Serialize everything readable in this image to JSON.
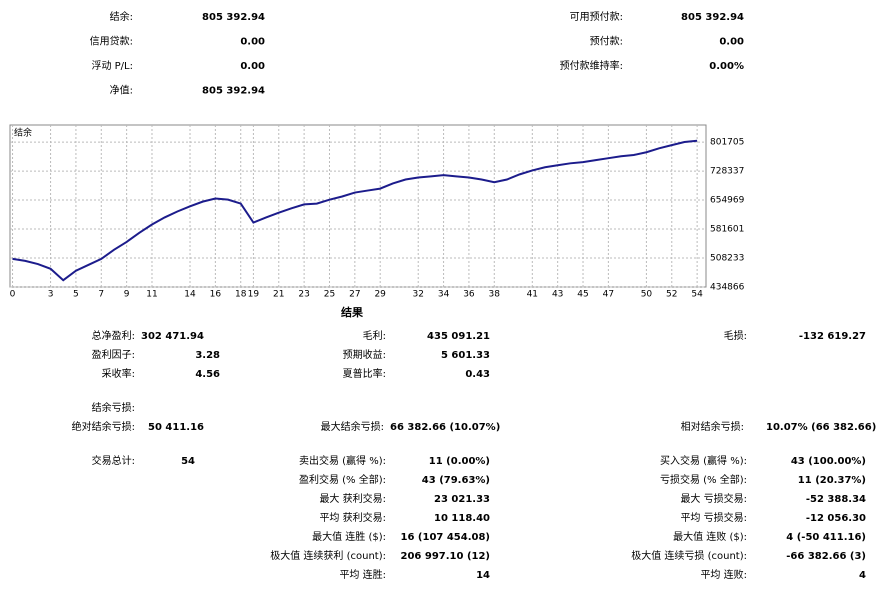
{
  "summary": {
    "left": [
      {
        "label": "结余:",
        "value": "805 392.94"
      },
      {
        "label": "信用贷款:",
        "value": "0.00"
      },
      {
        "label": "浮动 P/L:",
        "value": "0.00"
      },
      {
        "label": "净值:",
        "value": "805 392.94"
      }
    ],
    "right": [
      {
        "label": "可用预付款:",
        "value": "805 392.94"
      },
      {
        "label": "预付款:",
        "value": "0.00"
      },
      {
        "label": "预付款维持率:",
        "value": "0.00%"
      }
    ]
  },
  "chart_data": {
    "type": "line",
    "label": "结余",
    "color": "#1c1c8c",
    "grid": true,
    "x": [
      0,
      1,
      2,
      3,
      4,
      5,
      6,
      7,
      8,
      9,
      10,
      11,
      12,
      13,
      14,
      15,
      16,
      17,
      18,
      19,
      20,
      21,
      22,
      23,
      24,
      25,
      26,
      27,
      28,
      29,
      30,
      31,
      32,
      33,
      34,
      35,
      36,
      37,
      38,
      39,
      40,
      41,
      42,
      43,
      44,
      45,
      46,
      47,
      48,
      49,
      50,
      51,
      52,
      53,
      54
    ],
    "values": [
      506000,
      501000,
      493000,
      481000,
      452000,
      476000,
      491000,
      506000,
      529000,
      549000,
      572000,
      593000,
      611000,
      626000,
      639000,
      651000,
      659000,
      656000,
      646000,
      598000,
      611000,
      623000,
      634000,
      644000,
      646000,
      656000,
      664000,
      674000,
      679000,
      684000,
      697000,
      707000,
      712000,
      715000,
      718000,
      715000,
      712000,
      707000,
      700000,
      707000,
      720000,
      730000,
      738000,
      743000,
      748000,
      751000,
      756000,
      761000,
      766000,
      769000,
      776000,
      786000,
      794000,
      802000,
      805000
    ],
    "xlim": [
      -0.2,
      54.7
    ],
    "xticks": [
      0,
      3,
      5,
      7,
      9,
      11,
      14,
      16,
      18,
      19,
      21,
      23,
      25,
      27,
      29,
      32,
      34,
      36,
      38,
      41,
      43,
      45,
      47,
      50,
      52,
      54
    ],
    "ylim": [
      434866,
      845000
    ],
    "yticks": [
      434866,
      508233,
      581601,
      654969,
      728337,
      801705
    ]
  },
  "results": {
    "title": "结果",
    "drawdown_heading": "结余亏损:",
    "items": [
      {
        "label": "总净盈利:",
        "value": "302 471.94"
      },
      {
        "label": "毛利:",
        "value": "435 091.21"
      },
      {
        "label": "毛损:",
        "value": "-132 619.27"
      },
      {
        "label": "盈利因子:",
        "value": "3.28"
      },
      {
        "label": "预期收益:",
        "value": "5 601.33"
      },
      {
        "label": "采收率:",
        "value": "4.56"
      },
      {
        "label": "夏普比率:",
        "value": "0.43"
      },
      {
        "label": "绝对结余亏损:",
        "value": "50 411.16"
      },
      {
        "label": "最大结余亏损:",
        "value": "66 382.66 (10.07%)"
      },
      {
        "label": "相对结余亏损:",
        "value": "10.07% (66 382.66)"
      },
      {
        "label": "交易总计:",
        "value": "54"
      },
      {
        "label": "卖出交易 (赢得 %):",
        "value": "11 (0.00%)"
      },
      {
        "label": "买入交易 (赢得 %):",
        "value": "43 (100.00%)"
      },
      {
        "label": "盈利交易 (% 全部):",
        "value": "43 (79.63%)"
      },
      {
        "label": "亏损交易 (% 全部):",
        "value": "11 (20.37%)"
      },
      {
        "label": "最大 获利交易:",
        "value": "23 021.33"
      },
      {
        "label": "最大 亏损交易:",
        "value": "-52 388.34"
      },
      {
        "label": "平均 获利交易:",
        "value": "10 118.40"
      },
      {
        "label": "平均 亏损交易:",
        "value": "-12 056.30"
      },
      {
        "label": "最大值 连胜 ($):",
        "value": "16 (107 454.08)"
      },
      {
        "label": "最大值 连败 ($):",
        "value": "4 (-50 411.16)"
      },
      {
        "label": "极大值 连续获利 (count):",
        "value": "206 997.10 (12)"
      },
      {
        "label": "极大值 连续亏损 (count):",
        "value": "-66 382.66 (3)"
      },
      {
        "label": "平均 连胜:",
        "value": "14"
      },
      {
        "label": "平均 连败:",
        "value": "4"
      }
    ]
  }
}
